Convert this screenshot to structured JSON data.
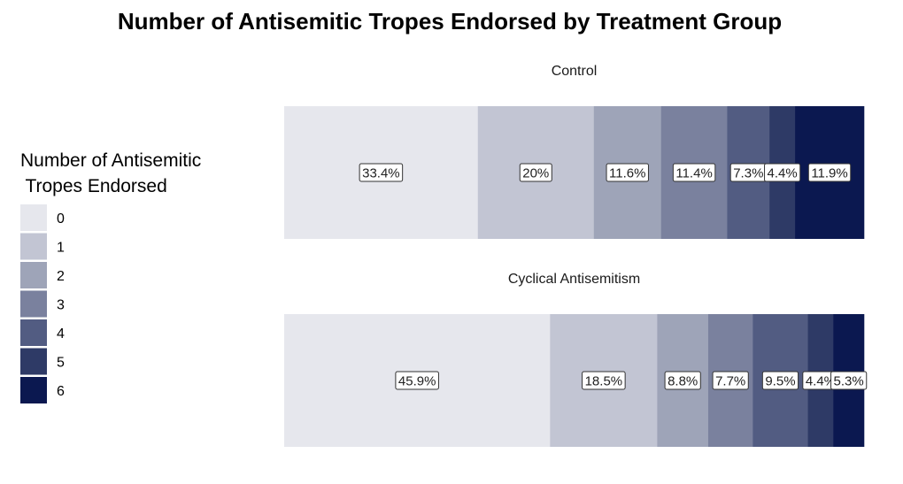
{
  "chart_data": {
    "type": "bar",
    "orientation": "horizontal",
    "stacked": true,
    "normalized": true,
    "title": "Number of Antisemitic Tropes Endorsed by Treatment Group",
    "legend": {
      "title_lines": [
        "Number of Antisemitic",
        " Tropes Endorsed"
      ],
      "placement": "left",
      "keys": [
        "0",
        "1",
        "2",
        "3",
        "4",
        "5",
        "6"
      ]
    },
    "colors": [
      "#e6e7ed",
      "#c2c5d3",
      "#9ea4b8",
      "#7a819e",
      "#525c82",
      "#2e3a66",
      "#0b1850"
    ],
    "grid": false,
    "panels": [
      {
        "name": "Control",
        "values": [
          33.4,
          20.0,
          11.6,
          11.4,
          7.3,
          4.4,
          11.9
        ],
        "labels": [
          "33.4%",
          "20%",
          "11.6%",
          "11.4%",
          "7.3%",
          "4.4%",
          "11.9%"
        ]
      },
      {
        "name": "Cyclical Antisemitism",
        "values": [
          45.9,
          18.5,
          8.8,
          7.7,
          9.5,
          4.4,
          5.3
        ],
        "labels": [
          "45.9%",
          "18.5%",
          "8.8%",
          "7.7%",
          "9.5%",
          "4.4%",
          "5.3%"
        ]
      }
    ]
  }
}
